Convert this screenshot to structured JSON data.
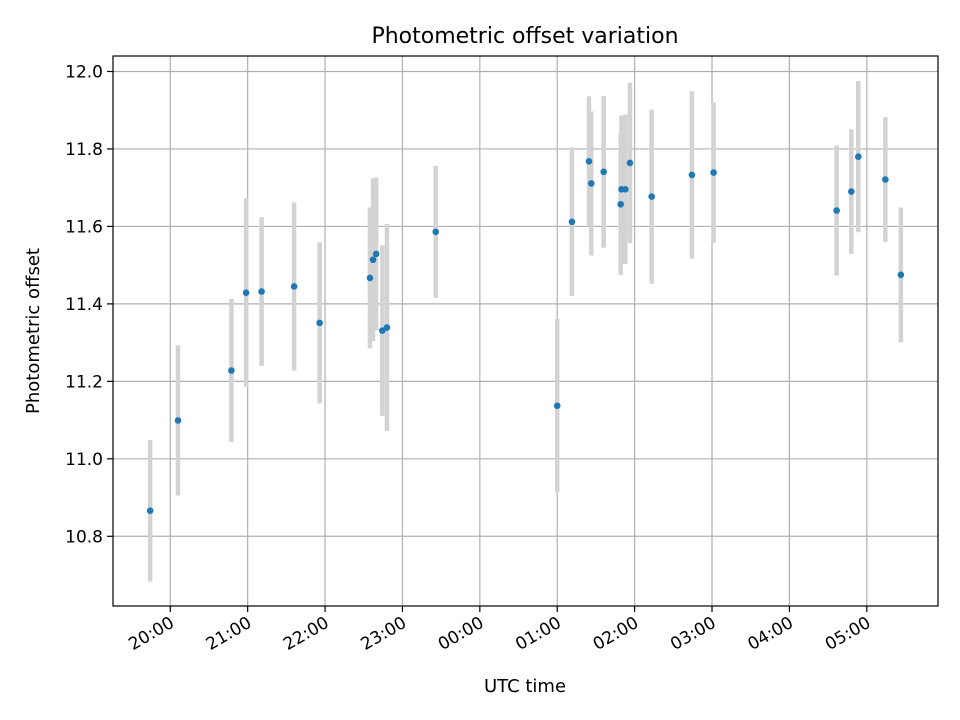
{
  "chart_data": {
    "type": "scatter",
    "title": "Photometric offset variation",
    "xlabel": "UTC time",
    "ylabel": "Photometric offset",
    "x_ticks": [
      "20:00",
      "21:00",
      "22:00",
      "23:00",
      "00:00",
      "01:00",
      "02:00",
      "03:00",
      "04:00",
      "05:00"
    ],
    "y_ticks": [
      "10.8",
      "11.0",
      "11.2",
      "11.4",
      "11.6",
      "11.8",
      "12.0"
    ],
    "xlim": [
      -0.74,
      9.92
    ],
    "ylim": [
      10.62,
      12.04
    ],
    "grid": true,
    "marker_color": "#1f77b4",
    "errorbar_color": "#d3d3d3",
    "points": [
      {
        "t": -0.26,
        "y": 10.866,
        "err": 0.183
      },
      {
        "t": 0.1,
        "y": 11.099,
        "err": 0.194
      },
      {
        "t": 0.79,
        "y": 11.228,
        "err": 0.185
      },
      {
        "t": 0.98,
        "y": 11.429,
        "err": 0.243
      },
      {
        "t": 1.18,
        "y": 11.432,
        "err": 0.192
      },
      {
        "t": 1.6,
        "y": 11.445,
        "err": 0.217
      },
      {
        "t": 1.93,
        "y": 11.351,
        "err": 0.208
      },
      {
        "t": 2.58,
        "y": 11.467,
        "err": 0.182
      },
      {
        "t": 2.62,
        "y": 11.514,
        "err": 0.21
      },
      {
        "t": 2.66,
        "y": 11.529,
        "err": 0.197
      },
      {
        "t": 2.74,
        "y": 11.331,
        "err": 0.22
      },
      {
        "t": 2.8,
        "y": 11.339,
        "err": 0.267
      },
      {
        "t": 3.43,
        "y": 11.586,
        "err": 0.17
      },
      {
        "t": 5.0,
        "y": 11.137,
        "err": 0.224
      },
      {
        "t": 5.19,
        "y": 11.612,
        "err": 0.192
      },
      {
        "t": 5.41,
        "y": 11.768,
        "err": 0.168
      },
      {
        "t": 5.44,
        "y": 11.711,
        "err": 0.186
      },
      {
        "t": 5.6,
        "y": 11.741,
        "err": 0.196
      },
      {
        "t": 5.82,
        "y": 11.657,
        "err": 0.182
      },
      {
        "t": 5.83,
        "y": 11.696,
        "err": 0.19
      },
      {
        "t": 5.88,
        "y": 11.696,
        "err": 0.193
      },
      {
        "t": 5.94,
        "y": 11.764,
        "err": 0.207
      },
      {
        "t": 6.22,
        "y": 11.677,
        "err": 0.225
      },
      {
        "t": 6.74,
        "y": 11.733,
        "err": 0.216
      },
      {
        "t": 7.02,
        "y": 11.739,
        "err": 0.181
      },
      {
        "t": 8.61,
        "y": 11.641,
        "err": 0.168
      },
      {
        "t": 8.8,
        "y": 11.69,
        "err": 0.161
      },
      {
        "t": 8.89,
        "y": 11.78,
        "err": 0.195
      },
      {
        "t": 9.24,
        "y": 11.721,
        "err": 0.161
      },
      {
        "t": 9.44,
        "y": 11.475,
        "err": 0.174
      }
    ]
  }
}
